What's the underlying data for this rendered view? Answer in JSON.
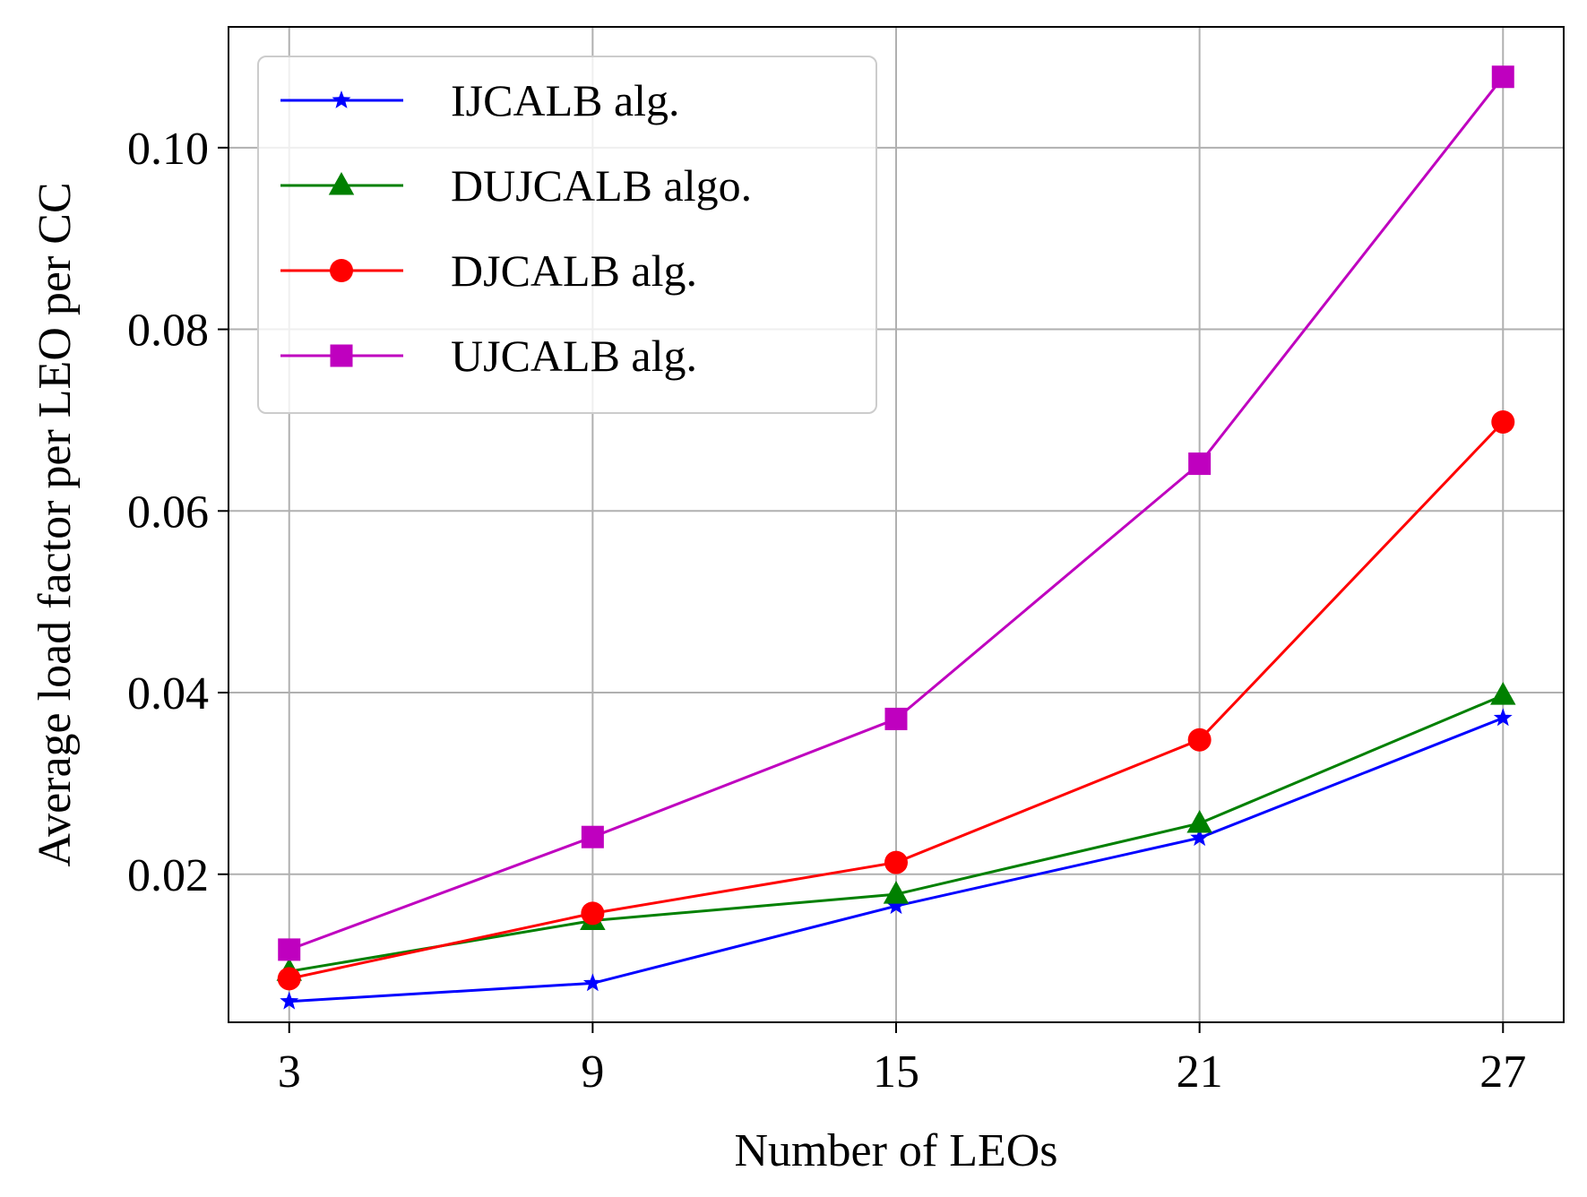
{
  "chart_data": {
    "type": "line",
    "title": "",
    "xlabel": "Number of LEOs",
    "ylabel": "Average load factor per LEO per CC",
    "x": [
      3,
      9,
      15,
      21,
      27
    ],
    "x_tick_labels": [
      "3",
      "9",
      "15",
      "21",
      "27"
    ],
    "xlim": [
      1.8,
      28.2
    ],
    "y_ticks": [
      0.02,
      0.04,
      0.06,
      0.08,
      0.1
    ],
    "y_tick_labels": [
      "0.02",
      "0.04",
      "0.06",
      "0.08",
      "0.10"
    ],
    "ylim": [
      0.0037,
      0.1133
    ],
    "grid": true,
    "legend_position": "upper-left",
    "series": [
      {
        "name": "IJCALB alg.",
        "color": "#0000ff",
        "marker": "star",
        "values": [
          0.006,
          0.008,
          0.0165,
          0.024,
          0.0372
        ]
      },
      {
        "name": "DUJCALB algo.",
        "color": "#008000",
        "marker": "triangle",
        "values": [
          0.0093,
          0.0149,
          0.0178,
          0.0256,
          0.0397
        ]
      },
      {
        "name": "DJCALB alg.",
        "color": "#ff0000",
        "marker": "circle",
        "values": [
          0.0085,
          0.0157,
          0.0213,
          0.0348,
          0.0698
        ]
      },
      {
        "name": "UJCALB alg.",
        "color": "#bf00bf",
        "marker": "square",
        "values": [
          0.0117,
          0.0241,
          0.0371,
          0.0652,
          0.1078
        ]
      }
    ]
  }
}
